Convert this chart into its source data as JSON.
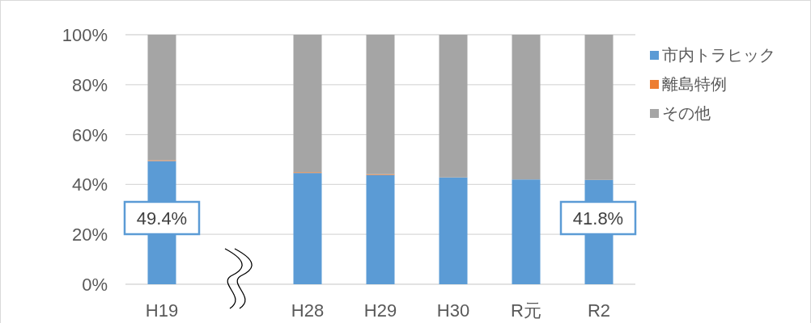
{
  "chart_data": {
    "type": "bar",
    "stacked": true,
    "categories": [
      "H19",
      null,
      "H28",
      "H29",
      "H30",
      "R元",
      "R2"
    ],
    "series": [
      {
        "name": "市内トラヒック",
        "color": "#5b9bd5",
        "values": [
          49.4,
          null,
          44.6,
          43.8,
          42.8,
          42.0,
          41.8
        ],
        "value_labels": [
          "49.4%",
          null,
          null,
          null,
          null,
          null,
          "41.8%"
        ]
      },
      {
        "name": "離島特例",
        "color": "#ed7d31",
        "values": [
          0.3,
          null,
          0.3,
          0.3,
          0,
          0,
          0
        ]
      },
      {
        "name": "その他",
        "color": "#a5a5a5",
        "values": [
          50.3,
          null,
          55.1,
          55.9,
          57.2,
          58.0,
          58.2
        ]
      }
    ],
    "ylim": [
      0,
      100
    ],
    "yticks": [
      {
        "value": 0,
        "label": "0%"
      },
      {
        "value": 20,
        "label": "20%"
      },
      {
        "value": 40,
        "label": "40%"
      },
      {
        "value": 60,
        "label": "60%"
      },
      {
        "value": 80,
        "label": "80%"
      },
      {
        "value": 100,
        "label": "100%"
      }
    ],
    "grid": "y",
    "legend": "right"
  }
}
